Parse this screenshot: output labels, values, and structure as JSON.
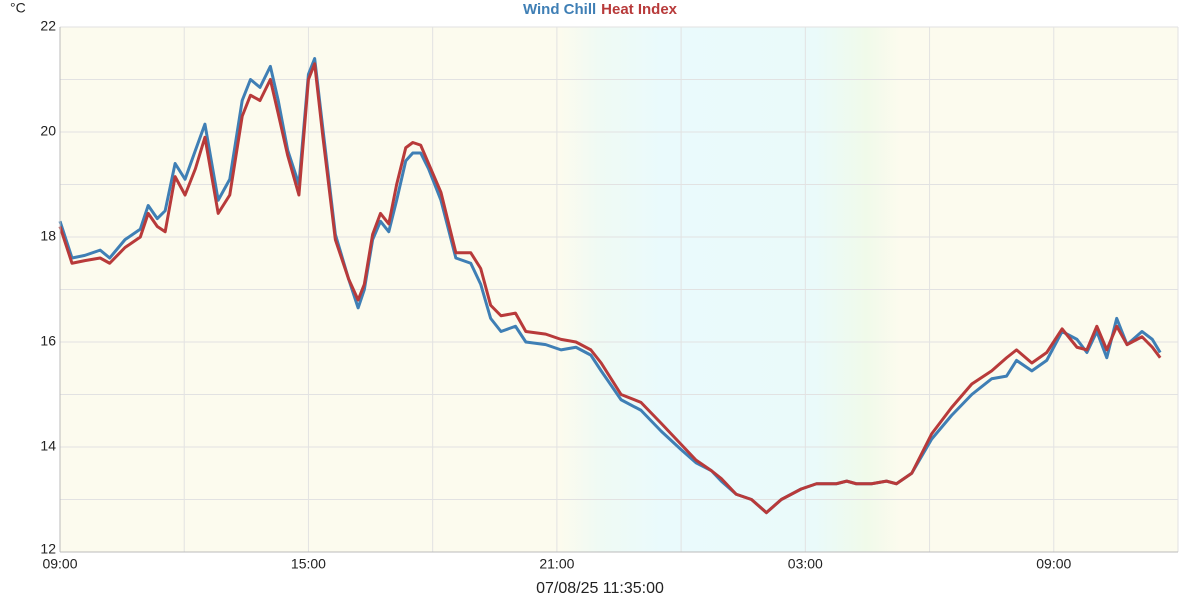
{
  "chart_data": {
    "type": "line",
    "title_unit": "°C",
    "footer": "07/08/25 11:35:00",
    "x": [
      0,
      0.29,
      0.6,
      0.97,
      1.2,
      1.57,
      1.94,
      2.13,
      2.35,
      2.54,
      2.78,
      3.02,
      3.27,
      3.5,
      3.82,
      4.1,
      4.4,
      4.6,
      4.83,
      5.08,
      5.27,
      5.5,
      5.77,
      6.0,
      6.15,
      6.35,
      6.65,
      6.97,
      7.2,
      7.35,
      7.55,
      7.74,
      7.94,
      8.13,
      8.35,
      8.52,
      8.71,
      8.9,
      9.2,
      9.56,
      9.92,
      10.16,
      10.4,
      10.65,
      11.0,
      11.25,
      11.73,
      12.1,
      12.46,
      12.82,
      13.07,
      13.55,
      14.03,
      14.52,
      15.0,
      15.36,
      15.73,
      15.97,
      16.33,
      16.7,
      17.06,
      17.42,
      17.9,
      18.27,
      18.75,
      19.0,
      19.23,
      19.6,
      19.96,
      20.2,
      20.57,
      21.05,
      21.53,
      22.02,
      22.5,
      22.86,
      23.1,
      23.47,
      23.83,
      24.2,
      24.56,
      24.8,
      25.04,
      25.28,
      25.52,
      25.77,
      26.13,
      26.38,
      26.57
    ],
    "series": [
      {
        "name": "Wind Chill",
        "color": "#3f7fb5",
        "values": [
          18.3,
          17.6,
          17.65,
          17.75,
          17.6,
          17.95,
          18.15,
          18.6,
          18.35,
          18.5,
          19.4,
          19.1,
          19.65,
          20.15,
          18.7,
          19.1,
          20.6,
          21.0,
          20.85,
          21.25,
          20.6,
          19.65,
          19.0,
          21.1,
          21.4,
          20.05,
          18.05,
          17.2,
          16.65,
          17.0,
          17.95,
          18.3,
          18.1,
          18.7,
          19.45,
          19.6,
          19.6,
          19.3,
          18.7,
          17.6,
          17.5,
          17.1,
          16.45,
          16.2,
          16.3,
          16.0,
          15.95,
          15.85,
          15.9,
          15.75,
          15.45,
          14.9,
          14.7,
          14.3,
          13.95,
          13.7,
          13.55,
          13.35,
          13.1,
          13.0,
          12.75,
          13.0,
          13.2,
          13.3,
          13.3,
          13.35,
          13.3,
          13.3,
          13.35,
          13.3,
          13.5,
          14.15,
          14.6,
          15.0,
          15.3,
          15.35,
          15.65,
          15.45,
          15.65,
          16.2,
          16.05,
          15.8,
          16.2,
          15.7,
          16.45,
          15.95,
          16.2,
          16.05,
          15.8
        ]
      },
      {
        "name": "Heat Index",
        "color": "#b83a3a",
        "values": [
          18.2,
          17.5,
          17.55,
          17.6,
          17.5,
          17.8,
          18.0,
          18.45,
          18.2,
          18.1,
          19.15,
          18.8,
          19.3,
          19.9,
          18.45,
          18.8,
          20.3,
          20.7,
          20.6,
          21.0,
          20.35,
          19.55,
          18.8,
          21.0,
          21.3,
          19.9,
          17.95,
          17.2,
          16.8,
          17.1,
          18.05,
          18.45,
          18.25,
          19.0,
          19.7,
          19.8,
          19.75,
          19.4,
          18.85,
          17.7,
          17.7,
          17.4,
          16.7,
          16.5,
          16.55,
          16.2,
          16.15,
          16.05,
          16.0,
          15.85,
          15.6,
          15.0,
          14.85,
          14.45,
          14.05,
          13.75,
          13.55,
          13.4,
          13.1,
          13.0,
          12.75,
          13.0,
          13.2,
          13.3,
          13.3,
          13.35,
          13.3,
          13.3,
          13.35,
          13.3,
          13.5,
          14.25,
          14.75,
          15.2,
          15.45,
          15.7,
          15.85,
          15.6,
          15.8,
          16.25,
          15.9,
          15.85,
          16.3,
          15.85,
          16.3,
          15.95,
          16.1,
          15.9,
          15.7
        ]
      }
    ],
    "xlim": [
      0,
      27
    ],
    "xticks": [
      {
        "value": 0,
        "label": "09:00"
      },
      {
        "value": 6,
        "label": "15:00"
      },
      {
        "value": 12,
        "label": "21:00"
      },
      {
        "value": 18,
        "label": "03:00"
      },
      {
        "value": 24,
        "label": "09:00"
      }
    ],
    "ylim": [
      12,
      22
    ],
    "yticks": [
      12,
      14,
      16,
      18,
      20,
      22
    ],
    "grid": true
  }
}
